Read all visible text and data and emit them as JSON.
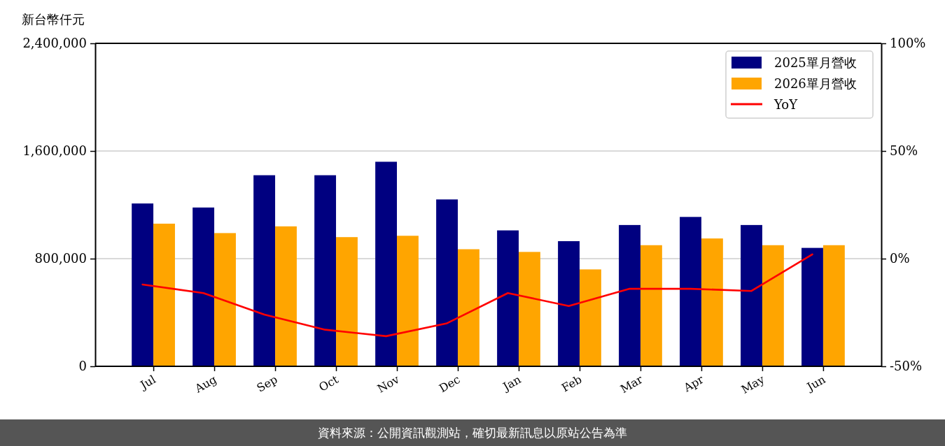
{
  "chart_data": {
    "type": "bar",
    "ylabel": "新台幣仟元",
    "categories": [
      "Jul",
      "Aug",
      "Sep",
      "Oct",
      "Nov",
      "Dec",
      "Jan",
      "Feb",
      "Mar",
      "Apr",
      "May",
      "Jun"
    ],
    "series": [
      {
        "name": "2025單月營收",
        "color": "#000080",
        "values": [
          1210000,
          1180000,
          1420000,
          1420000,
          1520000,
          1240000,
          1010000,
          930000,
          1050000,
          1110000,
          1050000,
          880000
        ]
      },
      {
        "name": "2026單月營收",
        "color": "#ffa500",
        "values": [
          1060000,
          990000,
          1040000,
          960000,
          970000,
          870000,
          850000,
          720000,
          900000,
          950000,
          900000,
          900000
        ]
      },
      {
        "name": "YoY",
        "type": "line",
        "axis": "y2",
        "color": "#ff0000",
        "values": [
          -12,
          -16,
          -26,
          -33,
          -36,
          -30,
          -16,
          -22,
          -14,
          -14,
          -15,
          2
        ]
      }
    ],
    "ylim": [
      0,
      2400000
    ],
    "yticks": [
      {
        "value": 0,
        "label": "0"
      },
      {
        "value": 800000,
        "label": "800,000"
      },
      {
        "value": 1600000,
        "label": "1,600,000"
      },
      {
        "value": 2400000,
        "label": "2,400,000"
      }
    ],
    "y2lim": [
      -50,
      100
    ],
    "y2ticks": [
      {
        "value": -50,
        "label": "-50%"
      },
      {
        "value": 0,
        "label": "0%"
      },
      {
        "value": 50,
        "label": "50%"
      },
      {
        "value": 100,
        "label": "100%"
      }
    ],
    "grid": "y",
    "legend": "top right",
    "marker": "none",
    "annotations": [
      "資料來源：公開資訊觀測站，確切最新訊息以原站公告為準"
    ]
  }
}
